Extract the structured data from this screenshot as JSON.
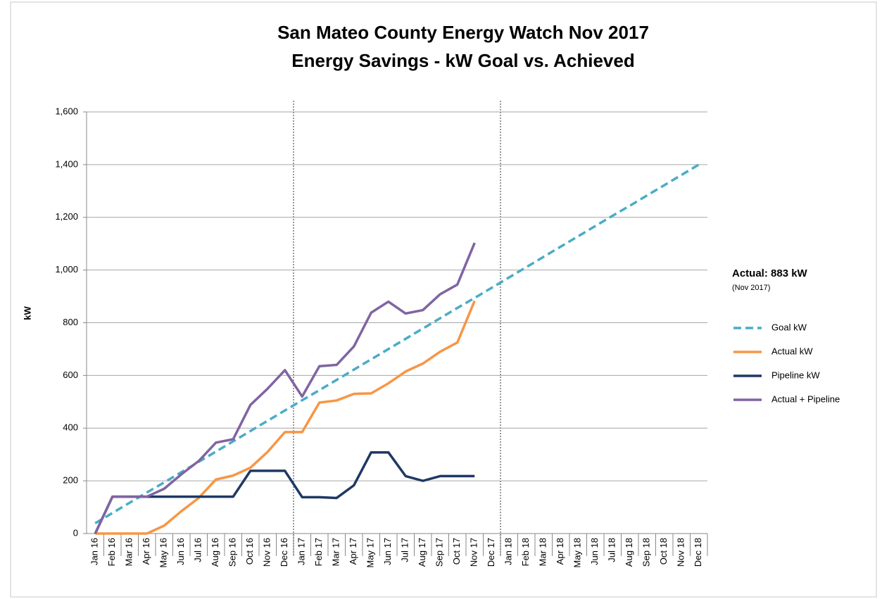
{
  "chart_data": {
    "type": "line",
    "title": "San Mateo County Energy Watch Nov 2017",
    "subtitle": "Energy Savings - kW Goal vs. Achieved",
    "y_label": "kW",
    "annotation": "Actual: 883 kW",
    "annotation_note": "(Nov 2017)",
    "categories": [
      "Jan 16",
      "Feb 16",
      "Mar 16",
      "Apr 16",
      "May 16",
      "Jun 16",
      "Jul 16",
      "Aug 16",
      "Sep 16",
      "Oct 16",
      "Nov 16",
      "Dec 16",
      "Jan 17",
      "Feb 17",
      "Mar 17",
      "Apr 17",
      "May 17",
      "Jun 17",
      "Jul 17",
      "Aug 17",
      "Sep 17",
      "Oct 17",
      "Nov 17",
      "Dec 17",
      "Jan 18",
      "Feb 18",
      "Mar 18",
      "Apr 18",
      "May 18",
      "Jun 18",
      "Jul 18",
      "Aug 18",
      "Sep 18",
      "Oct 18",
      "Nov 18",
      "Dec 18"
    ],
    "series": [
      {
        "name": "Goal kW",
        "color": "#4bacc6",
        "dashed": true,
        "values": [
          39,
          78,
          117,
          156,
          194,
          233,
          272,
          311,
          350,
          389,
          428,
          467,
          506,
          544,
          583,
          622,
          661,
          700,
          739,
          778,
          817,
          856,
          894,
          933,
          972,
          1011,
          1050,
          1089,
          1128,
          1167,
          1206,
          1244,
          1283,
          1322,
          1361,
          1400
        ]
      },
      {
        "name": "Actual kW",
        "color": "#f79646",
        "values": [
          0,
          0,
          0,
          0,
          30,
          85,
          135,
          205,
          220,
          250,
          310,
          385,
          385,
          497,
          505,
          530,
          532,
          570,
          615,
          645,
          690,
          725,
          883,
          null,
          null,
          null,
          null,
          null,
          null,
          null,
          null,
          null,
          null,
          null,
          null,
          null
        ]
      },
      {
        "name": "Pipeline kW",
        "color": "#1f3864",
        "values": [
          0,
          140,
          140,
          140,
          140,
          140,
          140,
          140,
          140,
          238,
          238,
          238,
          138,
          138,
          135,
          183,
          308,
          308,
          218,
          200,
          218,
          218,
          218,
          null,
          null,
          null,
          null,
          null,
          null,
          null,
          null,
          null,
          null,
          null,
          null,
          null
        ]
      },
      {
        "name": "Actual + Pipeline",
        "color": "#8064a2",
        "values": [
          0,
          140,
          140,
          140,
          170,
          225,
          275,
          345,
          358,
          488,
          550,
          620,
          520,
          635,
          640,
          710,
          838,
          880,
          835,
          848,
          908,
          945,
          1103,
          null,
          null,
          null,
          null,
          null,
          null,
          null,
          null,
          null,
          null,
          null,
          null,
          null
        ]
      }
    ],
    "ylim": [
      0,
      1600
    ],
    "yticks": [
      0,
      200,
      400,
      600,
      800,
      {
        "value": 1000,
        "label": "1,000"
      },
      {
        "value": 1200,
        "label": "1,200"
      },
      {
        "value": 1400,
        "label": "1,400"
      },
      {
        "value": 1600,
        "label": "1,600"
      }
    ],
    "grid": true
  }
}
